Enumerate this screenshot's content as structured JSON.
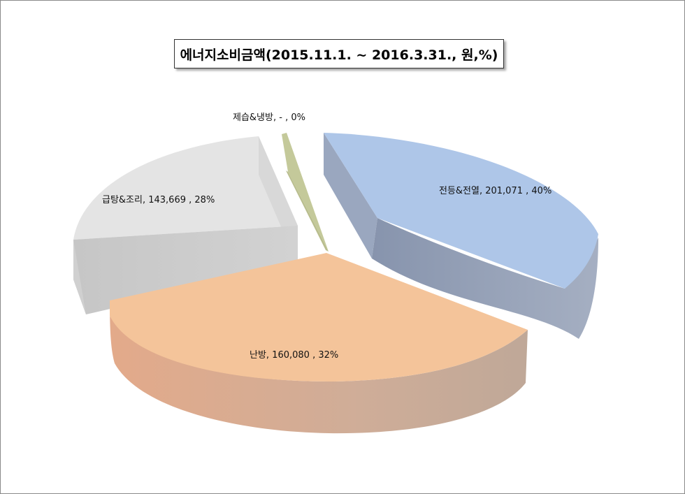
{
  "chart_data": {
    "type": "pie",
    "title": "에너지소비금액(2015.11.1.  ~  2016.3.31., 원,%)",
    "slices": [
      {
        "name": "전등&전열",
        "value_text": "201,071",
        "value": 201071,
        "percent": 40,
        "label": "전등&전열,  201,071 , 40%",
        "color": "#aec6e8"
      },
      {
        "name": "난방",
        "value_text": "160,080",
        "value": 160080,
        "percent": 32,
        "label": "난방,  160,080 , 32%",
        "color": "#f4c49a"
      },
      {
        "name": "급탕&조리",
        "value_text": "143,669",
        "value": 143669,
        "percent": 28,
        "label": "급탕&조리,  143,669 , 28%",
        "color": "#e4e4e4"
      },
      {
        "name": "제습&냉방",
        "value_text": "-",
        "value": 0,
        "percent": 0,
        "label": "제습&냉방,  - , 0%",
        "color": "#c4c99a"
      }
    ]
  }
}
